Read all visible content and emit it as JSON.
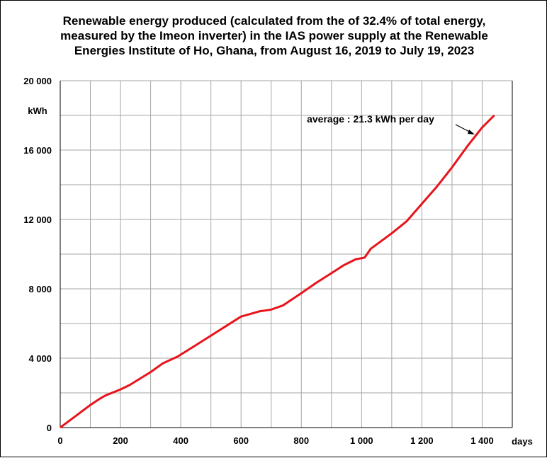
{
  "title_lines": [
    "Renewable energy produced (calculated from the of 32.4% of total energy,",
    "measured by the Imeon inverter) in the IAS  power supply at the Renewable",
    "Energies Institute of Ho, Ghana, from August 16, 2019  to July 19, 2023"
  ],
  "chart_data": {
    "type": "line",
    "title": "Renewable energy produced (calculated from the of 32.4% of total energy, measured by the Imeon inverter) in the IAS  power supply at the Renewable Energies Institute of Ho, Ghana, from August 16, 2019  to July 19, 2023",
    "xlabel": "days",
    "ylabel": "kWh",
    "xlim": [
      0,
      1500
    ],
    "ylim": [
      0,
      20000
    ],
    "x_ticks": [
      0,
      200,
      400,
      600,
      800,
      1000,
      1200,
      1400
    ],
    "x_tick_labels": [
      "0",
      "200",
      "400",
      "600",
      "800",
      "1 000",
      "1 200",
      "1 400"
    ],
    "y_ticks": [
      0,
      4000,
      8000,
      12000,
      16000,
      20000
    ],
    "y_tick_labels": [
      "0",
      "4 000",
      "8 000",
      "12 000",
      "16 000",
      "20 000"
    ],
    "grid": true,
    "annotation": "average : 21.3 kWh per day",
    "series": [
      {
        "color": "#e8141c",
        "x": [
          0,
          50,
          100,
          130,
          150,
          200,
          230,
          300,
          340,
          390,
          450,
          500,
          550,
          600,
          620,
          660,
          700,
          740,
          800,
          850,
          900,
          940,
          980,
          1010,
          1030,
          1100,
          1150,
          1200,
          1250,
          1300,
          1350,
          1400,
          1440
        ],
        "y": [
          0,
          650,
          1300,
          1650,
          1850,
          2200,
          2450,
          3200,
          3700,
          4100,
          4750,
          5300,
          5850,
          6400,
          6500,
          6700,
          6800,
          7050,
          7750,
          8350,
          8900,
          9350,
          9700,
          9800,
          10300,
          11200,
          11900,
          12900,
          13900,
          15000,
          16200,
          17300,
          18000
        ]
      }
    ]
  },
  "colors": {
    "line": "#e8141c",
    "grid": "#a6a6a6",
    "axis": "#000000",
    "annotation_arrow": "#000000"
  }
}
